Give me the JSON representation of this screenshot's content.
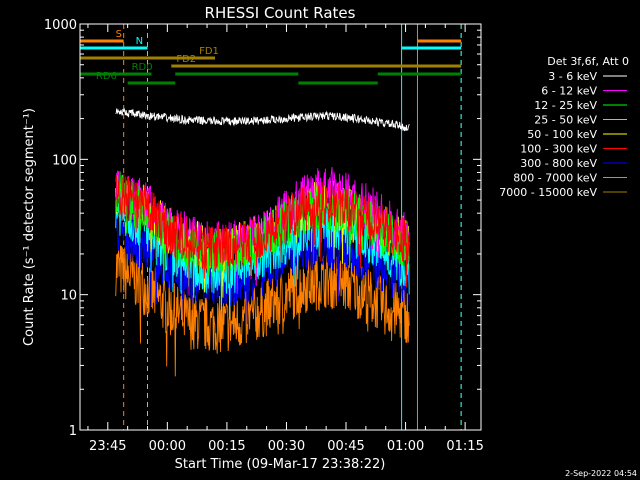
{
  "chart_data": {
    "type": "line",
    "title": "RHESSI Count Rates",
    "xlabel": "Start Time (09-Mar-17 23:38:22)",
    "ylabel": "Count Rate (s⁻¹ detector segment⁻¹)",
    "yscale": "log",
    "ylim": [
      1,
      1000
    ],
    "xlim_minutes_after_2338": [
      0,
      101
    ],
    "x_ticks": [
      "23:45",
      "00:00",
      "00:15",
      "00:30",
      "00:45",
      "01:00",
      "01:15"
    ],
    "y_ticks": [
      "1",
      "10",
      "100",
      "1000"
    ],
    "legend_header": "Det 3f,6f, Att 0",
    "legend_position": "right",
    "series": [
      {
        "name": "3 - 6 keV",
        "color": "#ffffff",
        "start": 233.5,
        "end": 263.3,
        "times": [
          "23:47",
          "23:55",
          "00:05",
          "00:15",
          "00:25",
          "00:35",
          "00:40",
          "00:45",
          "00:55",
          "01:01"
        ],
        "values": [
          225,
          210,
          195,
          190,
          195,
          205,
          210,
          205,
          185,
          170
        ]
      },
      {
        "name": "6 - 12 keV",
        "color": "#ff00ff",
        "start": 233.5,
        "end": 263.3,
        "times": [
          "23:47",
          "23:50",
          "23:55",
          "00:00",
          "00:05",
          "00:10",
          "00:15",
          "00:20",
          "00:25",
          "00:30",
          "00:35",
          "00:40",
          "00:45",
          "00:50",
          "00:55",
          "01:01"
        ],
        "values": [
          60,
          55,
          45,
          32,
          27,
          24,
          23,
          25,
          30,
          42,
          55,
          60,
          55,
          45,
          35,
          25
        ]
      },
      {
        "name": "12 - 25 keV",
        "color": "#00ff00",
        "start": 233.5,
        "end": 263.3,
        "times": [
          "23:47",
          "23:50",
          "23:55",
          "00:00",
          "00:05",
          "00:10",
          "00:15",
          "00:20",
          "00:25",
          "00:30",
          "00:35",
          "00:40",
          "00:45",
          "00:50",
          "00:55",
          "01:01"
        ],
        "values": [
          58,
          50,
          40,
          28,
          22,
          20,
          20,
          22,
          26,
          34,
          42,
          45,
          42,
          35,
          28,
          20
        ]
      },
      {
        "name": "25 - 50 keV",
        "color": "#00ffff",
        "start": 233.5,
        "end": 263.3,
        "times": [
          "23:47",
          "23:50",
          "23:55",
          "00:00",
          "00:05",
          "00:10",
          "00:15",
          "00:20",
          "00:25",
          "00:30",
          "00:35",
          "00:40",
          "00:45",
          "00:50",
          "00:55",
          "01:01"
        ],
        "values": [
          42,
          38,
          30,
          21,
          16,
          15,
          15,
          16,
          20,
          25,
          30,
          33,
          30,
          25,
          20,
          15
        ]
      },
      {
        "name": "50 - 100 keV",
        "color": "#ffff00",
        "start": 233.5,
        "end": 263.3,
        "times": [
          "23:47",
          "23:50",
          "23:55",
          "00:00",
          "00:05",
          "00:10",
          "00:15",
          "00:20",
          "00:25",
          "00:30",
          "00:35",
          "00:40",
          "00:45",
          "00:50",
          "00:55",
          "01:01"
        ],
        "values": [
          55,
          50,
          42,
          30,
          25,
          22,
          22,
          24,
          28,
          36,
          44,
          48,
          45,
          38,
          30,
          24
        ]
      },
      {
        "name": "100 - 300 keV",
        "color": "#ff0000",
        "start": 233.5,
        "end": 263.3,
        "times": [
          "23:47",
          "23:50",
          "23:55",
          "00:00",
          "00:05",
          "00:10",
          "00:15",
          "00:20",
          "00:25",
          "00:30",
          "00:35",
          "00:40",
          "00:45",
          "00:50",
          "00:55",
          "01:01"
        ],
        "values": [
          56,
          50,
          42,
          30,
          25,
          22,
          22,
          24,
          28,
          36,
          44,
          47,
          44,
          37,
          30,
          24
        ]
      },
      {
        "name": "300 - 800 keV",
        "color": "#0000ff",
        "start": 233.5,
        "end": 263.3,
        "times": [
          "23:47",
          "23:50",
          "23:55",
          "00:00",
          "00:05",
          "00:10",
          "00:15",
          "00:20",
          "00:25",
          "00:30",
          "00:35",
          "00:40",
          "00:45",
          "00:50",
          "00:55",
          "01:01"
        ],
        "values": [
          30,
          27,
          22,
          16,
          13,
          12,
          12,
          13,
          15,
          19,
          22,
          23,
          22,
          18,
          15,
          12
        ]
      },
      {
        "name": "800 - 7000 keV",
        "color": "#ff8000",
        "start": 233.5,
        "end": 263.3,
        "times": [
          "23:47",
          "23:50",
          "23:55",
          "00:00",
          "00:05",
          "00:10",
          "00:15",
          "00:20",
          "00:25",
          "00:30",
          "00:35",
          "00:40",
          "00:45",
          "00:50",
          "00:55",
          "01:01"
        ],
        "values": [
          16,
          14,
          11,
          8,
          6.5,
          6,
          6,
          6.5,
          8,
          10,
          12,
          13,
          12,
          10,
          8,
          7
        ]
      },
      {
        "name": "7000 - 15000 keV",
        "color": "#a08000",
        "values": []
      }
    ],
    "flags": [
      {
        "label": "S",
        "color": "#ff8000",
        "segments": [
          [
            "23:38",
            "23:49"
          ],
          [
            "01:03",
            "01:14"
          ]
        ]
      },
      {
        "label": "N",
        "color": "#00ffff",
        "segments": [
          [
            "23:38",
            "23:55"
          ],
          [
            "00:59",
            "01:14"
          ]
        ]
      },
      {
        "label": "FD1",
        "color": "#a08000",
        "segments": [
          [
            "23:38",
            "00:12"
          ]
        ]
      },
      {
        "label": "FD2",
        "color": "#a08000",
        "segments": [
          [
            "00:01",
            "01:14"
          ]
        ]
      },
      {
        "label": "RD0",
        "color": "#008000",
        "segments": [
          [
            "23:38",
            "23:56"
          ],
          [
            "00:02",
            "00:33"
          ],
          [
            "00:53",
            "01:14"
          ]
        ]
      },
      {
        "label": "RD6",
        "color": "#008000",
        "segments": [
          [
            "23:50",
            "00:02"
          ],
          [
            "00:33",
            "00:53"
          ]
        ]
      }
    ],
    "vertical_markers": [
      {
        "time": "23:38",
        "color": "#00ffff",
        "style": "solid"
      },
      {
        "time": "23:49",
        "color": "#ff8000",
        "style": "dashed"
      },
      {
        "time": "23:55",
        "color": "#00ffff",
        "style": "dashed"
      },
      {
        "time": "00:59",
        "color": "#00ffff",
        "style": "solid"
      },
      {
        "time": "01:03",
        "color": "#ff8000",
        "style": "solid"
      },
      {
        "time": "01:14",
        "color": "#ff8000",
        "style": "dashed"
      },
      {
        "time": "01:14",
        "color": "#00ffff",
        "style": "dashed"
      }
    ],
    "footer_date": "2-Sep-2022 04:54"
  }
}
